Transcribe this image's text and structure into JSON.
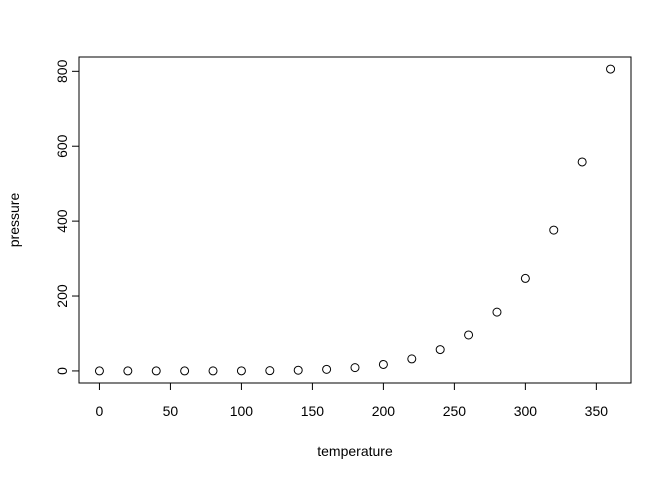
{
  "chart_data": {
    "type": "scatter",
    "title": "",
    "xlabel": "temperature",
    "ylabel": "pressure",
    "x": [
      0,
      20,
      40,
      60,
      80,
      100,
      120,
      140,
      160,
      180,
      200,
      220,
      240,
      260,
      280,
      300,
      320,
      340,
      360
    ],
    "y": [
      0.0002,
      0.0012,
      0.006,
      0.03,
      0.09,
      0.27,
      0.75,
      1.85,
      4.2,
      8.8,
      17.3,
      32.1,
      57,
      96,
      157,
      247,
      376,
      558,
      806
    ],
    "xlim": [
      -14.4,
      374.4
    ],
    "ylim": [
      -32.24,
      838.24
    ],
    "xticks": [
      "0",
      "50",
      "100",
      "150",
      "200",
      "250",
      "300",
      "350"
    ],
    "yticks": [
      "0",
      "200",
      "400",
      "600",
      "800"
    ],
    "grid": false,
    "marker": "open-circle",
    "color": "#000000"
  }
}
